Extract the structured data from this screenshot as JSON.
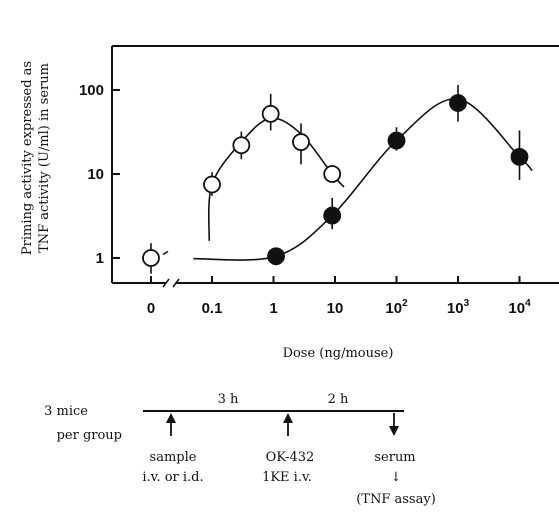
{
  "chart_data": {
    "type": "scatter",
    "title": "",
    "xlabel": "Dose (ng/mouse)",
    "ylabel_line1": "Priming activity expressed as",
    "ylabel_line2": "TNF activity (U/ml) in serum",
    "yscale": "log",
    "ylim": [
      0.6,
      300
    ],
    "y_ticks": [
      "1",
      "10",
      "100"
    ],
    "x_ticks": [
      {
        "label": "0",
        "exp": ""
      },
      {
        "label": "0.1",
        "exp": ""
      },
      {
        "label": "1",
        "exp": ""
      },
      {
        "label": "10",
        "exp": ""
      },
      {
        "label": "10",
        "exp": "2"
      },
      {
        "label": "10",
        "exp": "3"
      },
      {
        "label": "10",
        "exp": "4"
      }
    ],
    "grid": false,
    "legend": "none",
    "series": [
      {
        "marker": "open-circle",
        "points": [
          {
            "x": 0,
            "y": 1.0,
            "err_lo": 0.65,
            "err_hi": 1.5
          },
          {
            "x": 0.1,
            "y": 7.5,
            "err_lo": 5.5,
            "err_hi": 10.5
          },
          {
            "x": 0.3,
            "y": 22,
            "err_lo": 15,
            "err_hi": 32
          },
          {
            "x": 0.9,
            "y": 52,
            "err_lo": 33,
            "err_hi": 90
          },
          {
            "x": 2.8,
            "y": 24,
            "err_lo": 13,
            "err_hi": 40
          },
          {
            "x": 9,
            "y": 10,
            "err_lo": 10,
            "err_hi": 10
          }
        ]
      },
      {
        "marker": "filled-circle",
        "points": [
          {
            "x": 1.1,
            "y": 1.05,
            "err_lo": 0.82,
            "err_hi": 1.3
          },
          {
            "x": 9,
            "y": 3.2,
            "err_lo": 2.2,
            "err_hi": 5.2
          },
          {
            "x": 100,
            "y": 25,
            "err_lo": 19,
            "err_hi": 36
          },
          {
            "x": 1000,
            "y": 70,
            "err_lo": 42,
            "err_hi": 115
          },
          {
            "x": 10000,
            "y": 16,
            "err_lo": 8.5,
            "err_hi": 33
          }
        ]
      }
    ]
  },
  "protocol": {
    "group_line1": "3 mice",
    "group_line2": "per group",
    "interval1": "3 h",
    "interval2": "2 h",
    "step1_line1": "sample",
    "step1_line2": "i.v. or i.d.",
    "step2_line1": "OK-432",
    "step2_line2": "1KE  i.v.",
    "step3_line1": "serum",
    "step3_arrow": "↓",
    "step3_line2": "(TNF assay)"
  }
}
